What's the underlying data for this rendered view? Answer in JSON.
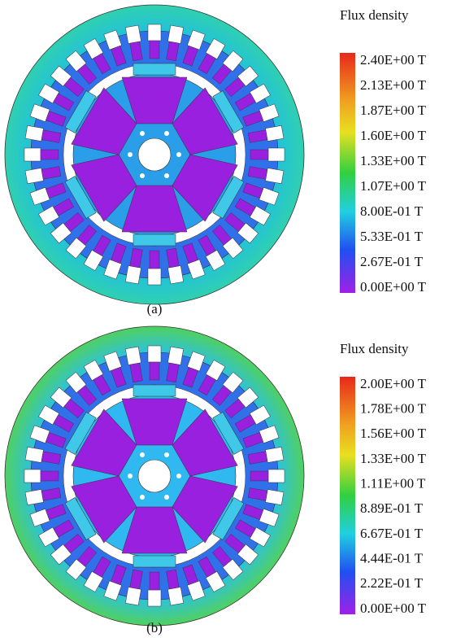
{
  "panels": [
    {
      "caption": "(a)",
      "legend": {
        "title": "Flux density",
        "labels": [
          "2.40E+00 T",
          "2.13E+00 T",
          "1.87E+00 T",
          "1.60E+00 T",
          "1.33E+00 T",
          "1.07E+00 T",
          "8.00E-01 T",
          "5.33E-01 T",
          "2.67E-01 T",
          "0.00E+00 T"
        ]
      }
    },
    {
      "caption": "(b)",
      "legend": {
        "title": "Flux density",
        "labels": [
          "2.00E+00 T",
          "1.78E+00 T",
          "1.56E+00 T",
          "1.33E+00 T",
          "1.11E+00 T",
          "8.89E-01 T",
          "6.67E-01 T",
          "4.44E-01 T",
          "2.22E-01 T",
          "0.00E+00 T"
        ]
      }
    }
  ]
}
